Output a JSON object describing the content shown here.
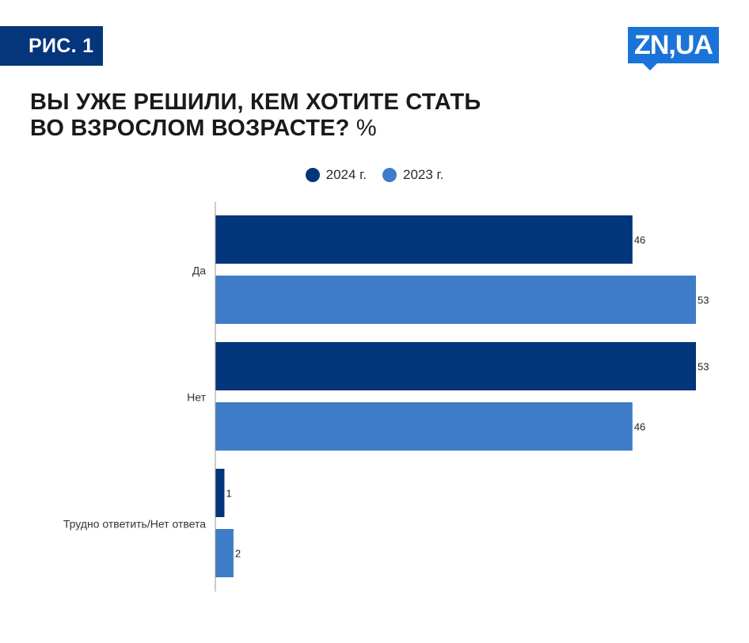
{
  "figure_label": "РИС. 1",
  "logo_text": "ZN,UA",
  "title_line1": "ВЫ УЖЕ РЕШИЛИ, КЕМ ХОТИТЕ СТАТЬ",
  "title_line2": "ВО ВЗРОСЛОМ ВОЗРАСТЕ?",
  "title_unit": "%",
  "colors": {
    "badge": "#05357a",
    "logo": "#1a73d9",
    "series_2024": "#03357a",
    "series_2023": "#3f7cc8",
    "axis": "#999999"
  },
  "chart_data": {
    "type": "bar",
    "orientation": "horizontal",
    "categories": [
      "Да",
      "Нет",
      "Трудно ответить/Нет ответа"
    ],
    "series": [
      {
        "name": "2024 г.",
        "values": [
          46,
          53,
          1
        ]
      },
      {
        "name": "2023 г.",
        "values": [
          53,
          46,
          2
        ]
      }
    ],
    "xlim": [
      0,
      53
    ],
    "legend": "top-center",
    "grid": false
  }
}
